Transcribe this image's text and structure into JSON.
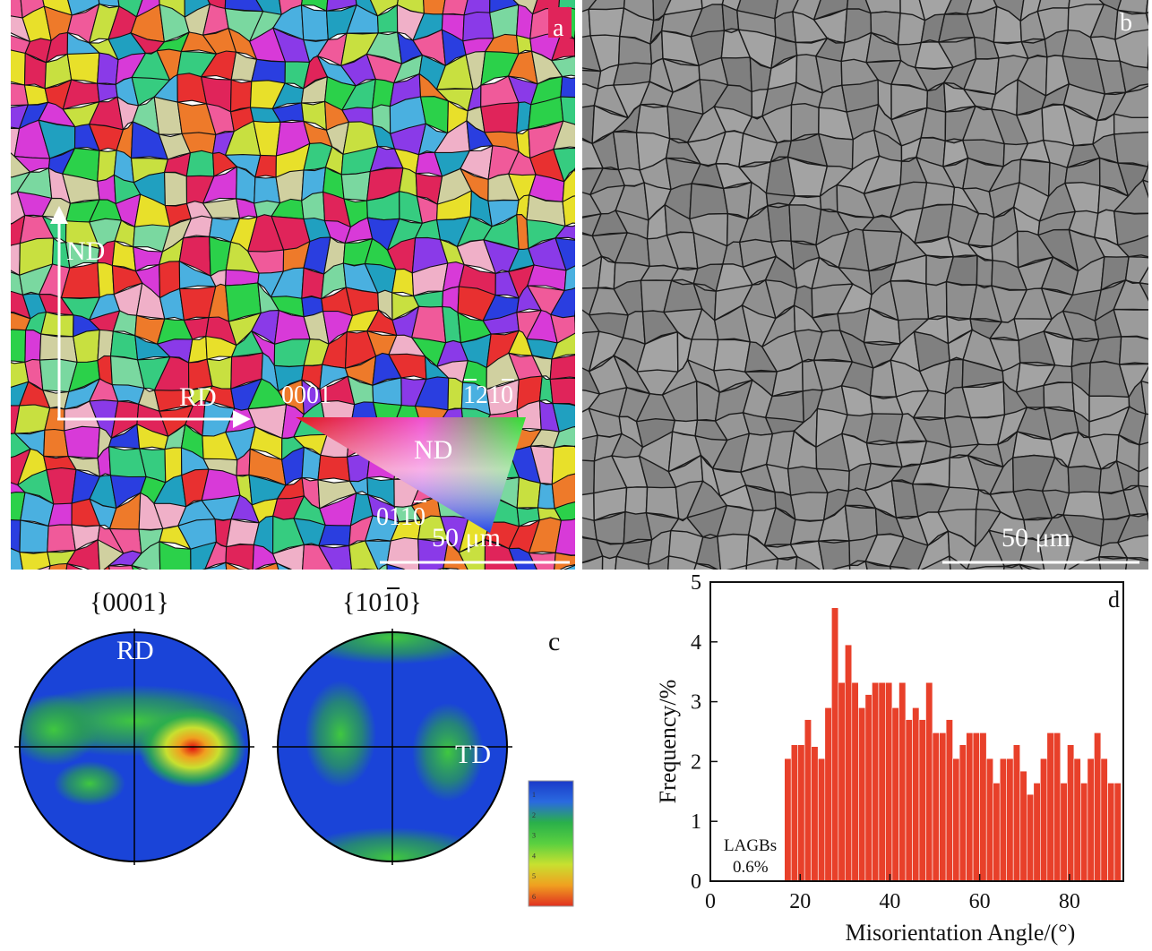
{
  "panel_a": {
    "letter": "a",
    "nd_label": "ND",
    "rd_label": "RD",
    "ipf_0001": "0001",
    "ipf_1210": "1210",
    "ipf_0110": "0110",
    "ipf_nd": "ND",
    "scale": "50 μm",
    "colors": [
      "#e0245a",
      "#2bd14a",
      "#2a3ee0",
      "#e8e02a",
      "#d83ad8",
      "#ee7a2a",
      "#36cc80",
      "#8a3ae8",
      "#f0b0c8",
      "#4ab0e0",
      "#c8e040",
      "#e83030",
      "#7ad8a0",
      "#d0d0a0",
      "#f05a9a",
      "#20a0c0"
    ]
  },
  "panel_b": {
    "letter": "b",
    "scale": "50 μm"
  },
  "panel_c": {
    "letter": "c",
    "title_0001": "{0001}",
    "title_1010": "{1010}",
    "rd_label": "RD",
    "td_label": "TD",
    "legend_ticks": [
      "1",
      "2",
      "3",
      "4",
      "5",
      "6"
    ],
    "legend_colors": [
      "#1a3ac8",
      "#2a6ae0",
      "#2ab04a",
      "#5ad040",
      "#c8e030",
      "#f0a020",
      "#e03020"
    ]
  },
  "panel_d": {
    "letter": "d",
    "lagb_label": "LAGBs",
    "lagb_value": "0.6%"
  },
  "chart_data": {
    "type": "bar",
    "title": "",
    "xlabel": "Misorientation Angle/(°)",
    "ylabel": "Frequency/%",
    "xlim": [
      0,
      92
    ],
    "ylim": [
      0,
      5
    ],
    "xticks": [
      0,
      20,
      40,
      60,
      80
    ],
    "yticks": [
      0,
      1,
      2,
      3,
      4,
      5
    ],
    "bin_width": 1.5,
    "bar_color": "#e8402a",
    "bins_start": [
      16.5,
      18,
      19.5,
      21,
      22.5,
      24,
      25.5,
      27,
      28.5,
      30,
      31.5,
      33,
      34.5,
      36,
      37.5,
      39,
      40.5,
      42,
      43.5,
      45,
      46.5,
      48,
      49.5,
      51,
      52.5,
      54,
      55.5,
      57,
      58.5,
      60,
      61.5,
      63,
      64.5,
      66,
      67.5,
      69,
      70.5,
      72,
      73.5,
      75,
      76.5,
      78,
      79.5,
      81,
      82.5,
      84,
      85.5,
      87,
      88.5,
      90
    ],
    "values": [
      2.05,
      2.28,
      2.28,
      2.7,
      2.25,
      2.05,
      2.9,
      4.57,
      3.32,
      3.95,
      3.32,
      2.9,
      3.12,
      3.32,
      3.32,
      3.32,
      2.9,
      3.32,
      2.7,
      2.9,
      2.7,
      3.32,
      2.48,
      2.48,
      2.7,
      2.05,
      2.28,
      2.48,
      2.48,
      2.48,
      2.05,
      1.64,
      2.05,
      2.05,
      2.28,
      1.84,
      1.45,
      1.64,
      2.05,
      2.48,
      2.48,
      1.64,
      2.28,
      2.05,
      1.64,
      2.05,
      2.48,
      2.05,
      1.64,
      1.64
    ]
  }
}
